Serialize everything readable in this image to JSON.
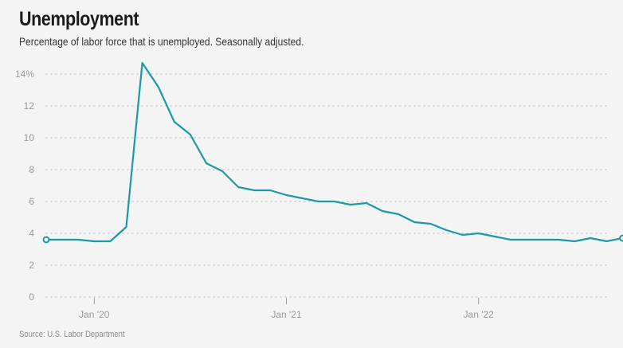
{
  "title": "Unemployment",
  "subtitle": "Percentage of labor force that is unemployed. Seasonally adjusted.",
  "source": "Source: U.S. Labor Department",
  "colors": {
    "line": "#1a9aa6",
    "grid": "#c8c8c8",
    "background": "#f4f4f4"
  },
  "chart_data": {
    "type": "line",
    "title": "Unemployment",
    "xlabel": "",
    "ylabel": "",
    "ylim": [
      0,
      14
    ],
    "grid": true,
    "y_ticks": [
      0,
      2,
      4,
      6,
      8,
      10,
      12,
      14
    ],
    "y_tick_labels": [
      "0",
      "2",
      "4",
      "6",
      "8",
      "10",
      "12",
      "14%"
    ],
    "x_ticks": [
      "2020-01",
      "2021-01",
      "2022-01"
    ],
    "x_tick_labels": [
      "Jan '20",
      "Jan '21",
      "Jan '22"
    ],
    "x": [
      "2019-10",
      "2019-11",
      "2019-12",
      "2020-01",
      "2020-02",
      "2020-03",
      "2020-04",
      "2020-05",
      "2020-06",
      "2020-07",
      "2020-08",
      "2020-09",
      "2020-10",
      "2020-11",
      "2020-12",
      "2021-01",
      "2021-02",
      "2021-03",
      "2021-04",
      "2021-05",
      "2021-06",
      "2021-07",
      "2021-08",
      "2021-09",
      "2021-10",
      "2021-11",
      "2021-12",
      "2022-01",
      "2022-02",
      "2022-03",
      "2022-04",
      "2022-05",
      "2022-06",
      "2022-07",
      "2022-08",
      "2022-09",
      "2022-10"
    ],
    "series": [
      {
        "values": [
          3.6,
          3.6,
          3.6,
          3.5,
          3.5,
          4.4,
          14.7,
          13.2,
          11.0,
          10.2,
          8.4,
          7.9,
          6.9,
          6.7,
          6.7,
          6.4,
          6.2,
          6.0,
          6.0,
          5.8,
          5.9,
          5.4,
          5.2,
          4.7,
          4.6,
          4.2,
          3.9,
          4.0,
          3.8,
          3.6,
          3.6,
          3.6,
          3.6,
          3.5,
          3.7,
          3.5,
          3.7
        ]
      }
    ],
    "marked_points": [
      "2019-10",
      "2022-10"
    ]
  }
}
